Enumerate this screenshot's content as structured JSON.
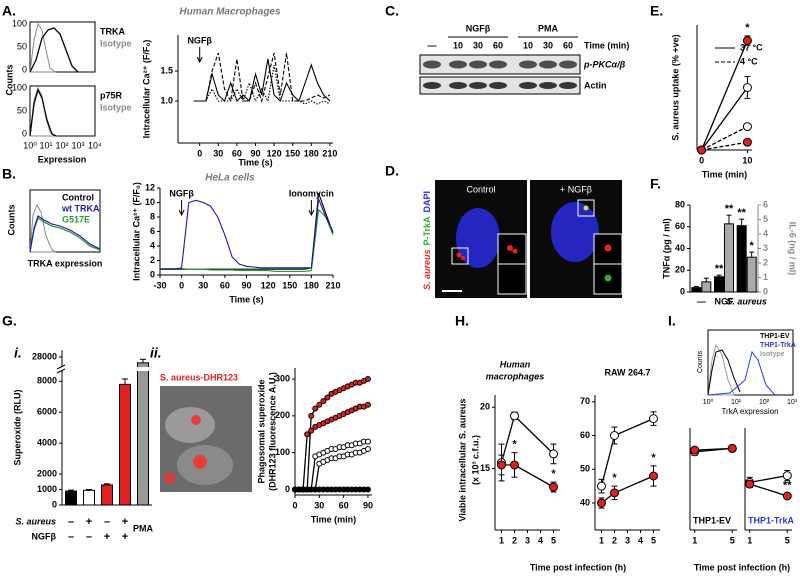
{
  "panel_labels": [
    "A.",
    "B.",
    "C.",
    "D.",
    "E.",
    "F.",
    "G.",
    "H.",
    "I."
  ],
  "sub_labels": [
    "i.",
    "ii."
  ],
  "flow_a": {
    "title": "Human Macrophages",
    "top": [
      "TRKA",
      "Isotype"
    ],
    "bottom": [
      "p75R",
      "Isotype"
    ],
    "ylabel": "Counts",
    "xlabel": "Expression",
    "yticks": [
      100,
      50,
      0
    ],
    "xticks": [
      "10⁰",
      "10¹",
      "10²",
      "10³",
      "10⁴"
    ]
  },
  "flow_b": {
    "title": "HeLa cells",
    "legend": [
      {
        "name": "Control",
        "color": "#000000"
      },
      {
        "name": "wt TRKA",
        "color": "#1a1aa8"
      },
      {
        "name": "G517E",
        "color": "#2e9a2e"
      }
    ],
    "ylabel": "Counts",
    "xlabel": "TRKA expression"
  },
  "blot_c": {
    "groups": [
      "NGFβ",
      "PMA"
    ],
    "time_label": "Time (min)",
    "lanes": [
      "—",
      "10",
      "30",
      "60",
      "10",
      "30",
      "60"
    ],
    "rows": [
      "p-PKCα/β",
      "Actin"
    ]
  },
  "image_d": {
    "conditions": [
      "Control",
      "+ NGFβ"
    ],
    "stains": [
      {
        "name": "S. aureus",
        "color": "#e8261e"
      },
      {
        "name": "P-TrkA",
        "color": "#2fae2f"
      },
      {
        "name": "DAPI",
        "color": "#2a2ae0"
      }
    ]
  },
  "image_g": {
    "label": "S. aureus-DHR123"
  },
  "flow_i": {
    "legend": [
      {
        "name": "THP1-EV",
        "color": "#000000"
      },
      {
        "name": "THP1-TrkA",
        "color": "#2a3ad8"
      },
      {
        "name": "Isotype",
        "color": "#999999"
      }
    ],
    "ylabel": "Counts",
    "xlabel": "TrkA expression",
    "xticks": [
      "10⁰",
      "10¹",
      "10²",
      "10³"
    ]
  },
  "h_labels": {
    "ylabel": [
      "Viable intracellular S. aureus",
      "(x 10³ c.f.u.)"
    ],
    "xlabel": "Time post infection (h)"
  },
  "i_xlabel": "Time post infection (h)",
  "chart_data": [
    {
      "type": "line",
      "ylabel": "Intracellular Ca²⁺ (F/F₀)",
      "xlabel": "Time (s)",
      "x": [
        -10,
        0,
        10,
        20,
        30,
        40,
        50,
        60,
        70,
        80,
        90,
        100,
        110,
        120,
        130,
        140,
        150,
        160,
        170,
        180,
        190,
        200,
        210
      ],
      "series": [
        {
          "color": "#000000",
          "style": "solid",
          "values": [
            1.0,
            1.0,
            1.0,
            1.45,
            1.1,
            1.0,
            1.3,
            1.0,
            1.1,
            1.0,
            1.45,
            1.1,
            1.7,
            1.1,
            1.0,
            1.3,
            1.1,
            1.0,
            1.3,
            1.6,
            1.3,
            1.1,
            1.0
          ]
        },
        {
          "color": "#000000",
          "style": "dashed",
          "values": [
            1.0,
            1.0,
            1.0,
            1.5,
            1.8,
            1.2,
            1.0,
            1.7,
            1.0,
            1.0,
            1.3,
            1.0,
            1.4,
            1.8,
            1.1,
            1.8,
            1.0,
            1.0,
            1.0,
            1.05,
            1.1,
            1.05,
            1.1
          ]
        },
        {
          "color": "#000000",
          "style": "dotted",
          "values": [
            1.0,
            1.0,
            1.0,
            1.2,
            1.0,
            1.0,
            1.0,
            1.2,
            1.0,
            1.3,
            1.0,
            1.2,
            1.0,
            1.6,
            1.0,
            1.0,
            1.0,
            1.0,
            0.95,
            1.0,
            0.95,
            1.0,
            0.95
          ]
        }
      ],
      "xlim": [
        -35,
        215
      ],
      "xticks": [
        0,
        30,
        60,
        90,
        120,
        150,
        180,
        210
      ],
      "ylim": [
        0.3,
        2.1
      ],
      "yticks": [
        {
          "value": 1,
          "label": "1.0"
        },
        {
          "value": 1.5,
          "label": "1.5"
        }
      ],
      "annotations": [
        {
          "text": "NGFβ",
          "x": 0
        }
      ]
    },
    {
      "type": "line",
      "ylabel": "Intracellular Ca²⁺ (F/F₀)",
      "xlabel": "Time (s)",
      "x": [
        -30,
        -20,
        -10,
        0,
        10,
        20,
        30,
        40,
        50,
        60,
        70,
        80,
        90,
        100,
        110,
        120,
        130,
        140,
        150,
        160,
        170,
        180,
        190,
        200,
        210
      ],
      "series": [
        {
          "color": "#000000",
          "style": "solid",
          "values": [
            0.8,
            0.8,
            0.8,
            0.8,
            0.8,
            0.8,
            0.8,
            0.8,
            0.8,
            0.8,
            0.8,
            0.8,
            0.8,
            0.8,
            0.8,
            0.8,
            0.8,
            0.8,
            0.8,
            0.8,
            0.8,
            1.0,
            11.3,
            8.5,
            5.8
          ]
        },
        {
          "color": "#2e9a2e",
          "style": "solid",
          "values": [
            0.9,
            0.9,
            0.9,
            0.9,
            0.8,
            0.8,
            0.8,
            0.7,
            0.7,
            0.7,
            0.7,
            0.6,
            0.6,
            0.6,
            0.6,
            0.6,
            0.5,
            0.5,
            0.5,
            0.5,
            0.5,
            0.6,
            9.0,
            8.0,
            5.5
          ]
        },
        {
          "color": "#1a1aa8",
          "style": "solid",
          "values": [
            0.8,
            0.8,
            0.8,
            1.0,
            10.0,
            10.3,
            10.0,
            9.5,
            8.0,
            5.5,
            2.5,
            1.5,
            1.2,
            1.1,
            1.0,
            1.0,
            1.0,
            1.0,
            1.0,
            1.0,
            1.0,
            1.0,
            10.5,
            8.0,
            6.0
          ]
        }
      ],
      "xlim": [
        -30,
        210
      ],
      "xticks": [
        -30,
        0,
        30,
        60,
        90,
        120,
        150,
        180,
        210
      ],
      "ylim": [
        0,
        12
      ],
      "yticks": [
        0,
        2,
        4,
        6,
        8,
        10,
        12
      ],
      "annotations": [
        {
          "text": "NGFβ",
          "x": 0
        },
        {
          "text": "Ionomycin",
          "x": 180
        }
      ]
    },
    {
      "type": "line",
      "ylabel": "S. aureus uptake (% +ve)",
      "xlabel": "Time (min)",
      "x": [
        0,
        10
      ],
      "legend": [
        {
          "name": "37 °C",
          "style": "solid"
        },
        {
          "name": "4 °C",
          "style": "dashed"
        }
      ],
      "series": [
        {
          "style": "solid",
          "marker": "#e0201c",
          "values": [
            0,
            7
          ],
          "errors": [
            null,
            0.3
          ]
        },
        {
          "style": "solid",
          "marker": "#ffffff",
          "values": [
            0,
            4
          ],
          "errors": [
            null,
            0.7
          ]
        },
        {
          "style": "dashed",
          "marker": "#ffffff",
          "values": [
            0,
            1.5
          ]
        },
        {
          "style": "dashed",
          "marker": "#e0201c",
          "values": [
            0,
            0.5
          ]
        }
      ],
      "xlim": [
        -1,
        11
      ],
      "xticks": [
        0,
        10
      ],
      "ylim": [
        0,
        8
      ],
      "annotations": [
        {
          "text": "*",
          "series": 0,
          "index": 1
        }
      ]
    },
    {
      "type": "bar",
      "ylabel": "TNFα (pg / ml)",
      "y2label": "IL-6 (ng / ml)",
      "categories": [
        "—",
        "NGF",
        "S. aureus"
      ],
      "series": [
        {
          "color": "#000000",
          "values": [
            4,
            14,
            61
          ],
          "errors": [
            1,
            1.5,
            6
          ]
        },
        {
          "color": "#aaaaaa",
          "axis": "y2",
          "values": [
            0.7,
            4.7,
            2.4
          ],
          "errors": [
            0.25,
            0.6,
            0.35
          ]
        }
      ],
      "ylim": [
        0,
        80
      ],
      "yticks": [
        0,
        20,
        40,
        60,
        80
      ],
      "y2lim": [
        0,
        6
      ],
      "y2ticks": [
        0,
        1,
        2,
        3,
        4,
        5,
        6
      ],
      "annotations": [
        {
          "text": "**",
          "series": 0,
          "index": 1
        },
        {
          "text": "**",
          "series": 1,
          "index": 1
        },
        {
          "text": "**",
          "series": 0,
          "index": 2
        },
        {
          "text": "*",
          "series": 1,
          "index": 2
        }
      ]
    },
    {
      "type": "bar",
      "ylabel": "Superoxide (RLU)",
      "values": [
        900,
        950,
        1300,
        7800,
        27500
      ],
      "errors": [
        60,
        50,
        70,
        350,
        300
      ],
      "colors": [
        "#000000",
        "#ffffff",
        "#e0201c",
        "#e0201c",
        "#999999"
      ],
      "ylim": [
        0,
        28600
      ],
      "axis_break": [
        8600,
        27400
      ],
      "yticks": [
        0,
        1000,
        2000,
        4000,
        6000,
        8000,
        28000
      ],
      "sign_rows": [
        {
          "label": "S. aureus",
          "signs": [
            "–",
            "+",
            "–",
            "+"
          ]
        },
        {
          "label": "NGFβ",
          "signs": [
            "–",
            "–",
            "+",
            "+"
          ]
        }
      ],
      "extra_label": "PMA"
    },
    {
      "type": "scatter",
      "ylabel": [
        "Phagosomal superoxide",
        "(DHR123 fluorescence A.U.)"
      ],
      "xlabel": "Time (min)",
      "x": [
        0,
        5,
        10,
        15,
        20,
        25,
        30,
        35,
        40,
        45,
        50,
        55,
        60,
        65,
        70,
        75,
        80,
        85,
        90
      ],
      "series": [
        {
          "color": "#000000",
          "marker": "#e0201c",
          "values": [
            0,
            0,
            0,
            0,
            200,
            220,
            230,
            240,
            250,
            260,
            265,
            270,
            275,
            280,
            285,
            290,
            290,
            295,
            300
          ]
        },
        {
          "color": "#000000",
          "marker": "#e0201c",
          "values": [
            0,
            0,
            0,
            150,
            160,
            170,
            175,
            180,
            185,
            190,
            195,
            200,
            205,
            210,
            215,
            220,
            225,
            225,
            230
          ]
        },
        {
          "color": "#000000",
          "marker": "#ffffff",
          "values": [
            0,
            0,
            0,
            0,
            0,
            90,
            95,
            100,
            105,
            110,
            110,
            115,
            115,
            120,
            120,
            125,
            125,
            130,
            130
          ]
        },
        {
          "color": "#000000",
          "marker": "#ffffff",
          "values": [
            0,
            0,
            0,
            0,
            0,
            0,
            70,
            75,
            80,
            85,
            85,
            90,
            90,
            95,
            95,
            100,
            100,
            105,
            110
          ]
        },
        {
          "color": "#000000",
          "marker": "#000000",
          "values": [
            0,
            0,
            0,
            0,
            0,
            0,
            0,
            0,
            0,
            0,
            0,
            0,
            0,
            0,
            0,
            0,
            0,
            0,
            0
          ]
        }
      ],
      "xlim": [
        0,
        95
      ],
      "xticks": [
        0,
        30,
        60,
        90
      ],
      "ylim": [
        -15,
        330
      ],
      "yticks": [
        0,
        100,
        200,
        300
      ]
    },
    {
      "type": "line",
      "title": [
        "Human",
        "macrophages"
      ],
      "x": [
        1,
        2,
        5
      ],
      "xlim": [
        0.5,
        5.5
      ],
      "xticks": [
        1,
        2,
        3,
        4,
        5
      ],
      "ylim": [
        10,
        21
      ],
      "yticks": [
        15,
        20
      ],
      "series": [
        {
          "style": "solid",
          "marker": "#ffffff",
          "values": [
            15.5,
            19.3,
            16.2
          ],
          "errors": [
            1.5,
            0.3,
            0.8
          ]
        },
        {
          "style": "solid",
          "marker": "#e0201c",
          "values": [
            15.3,
            15.3,
            13.5
          ],
          "errors": [
            0.8,
            1,
            0.4
          ]
        }
      ],
      "annotations": [
        {
          "text": "*",
          "series": 1,
          "index": 1
        },
        {
          "text": "*",
          "series": 1,
          "index": 2
        }
      ]
    },
    {
      "type": "line",
      "title": "RAW 264.7",
      "x": [
        1,
        2,
        5
      ],
      "xlim": [
        0.5,
        5.5
      ],
      "xticks": [
        1,
        2,
        3,
        4,
        5
      ],
      "ylim": [
        32,
        72
      ],
      "yticks": [
        40,
        50,
        60,
        70
      ],
      "series": [
        {
          "style": "solid",
          "marker": "#ffffff",
          "values": [
            45,
            60,
            65
          ],
          "errors": [
            2,
            2.5,
            2
          ]
        },
        {
          "style": "solid",
          "marker": "#e0201c",
          "values": [
            40,
            43,
            48
          ],
          "errors": [
            1.5,
            2,
            3
          ]
        }
      ],
      "annotations": [
        {
          "text": "*",
          "series": 1,
          "index": 1
        },
        {
          "text": "*",
          "series": 1,
          "index": 2
        }
      ]
    },
    {
      "type": "line",
      "title": "THP1-EV",
      "x": [
        1,
        5
      ],
      "xlim": [
        0.5,
        5.5
      ],
      "xticks": [
        1,
        5
      ],
      "ylim": [
        0,
        60
      ],
      "series": [
        {
          "style": "solid",
          "marker": "#ffffff",
          "values": [
            46,
            48
          ],
          "errors": [
            2,
            1
          ]
        },
        {
          "style": "solid",
          "marker": "#e0201c",
          "values": [
            47,
            48
          ],
          "errors": [
            1.5,
            1
          ]
        }
      ]
    },
    {
      "type": "line",
      "title": "THP1-TrkA",
      "title_color": "#2a3ad8",
      "x": [
        1,
        5
      ],
      "xlim": [
        0.5,
        5.5
      ],
      "xticks": [
        1,
        5
      ],
      "ylim": [
        0,
        60
      ],
      "series": [
        {
          "style": "solid",
          "marker": "#ffffff",
          "values": [
            28,
            32
          ],
          "errors": [
            3,
            3
          ]
        },
        {
          "style": "solid",
          "marker": "#e0201c",
          "values": [
            27,
            20
          ],
          "errors": [
            2,
            1.5
          ]
        }
      ],
      "annotations": [
        {
          "text": "**",
          "series": 1,
          "index": 1
        }
      ]
    }
  ]
}
